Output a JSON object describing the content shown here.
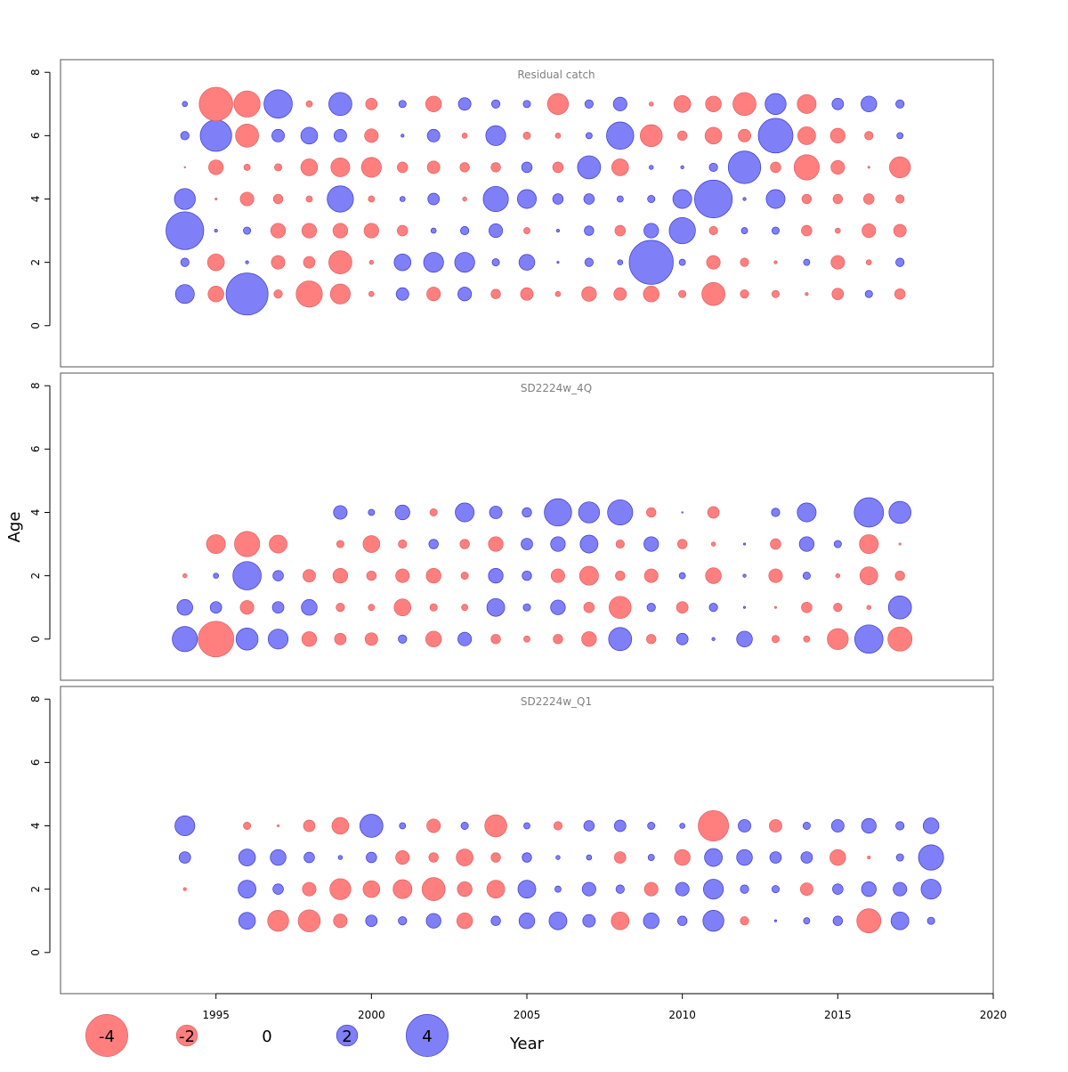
{
  "colors": {
    "positive": "#7f7ff7",
    "negative": "#ff7f7f",
    "positive_stroke": "#3a3acf",
    "negative_stroke": "#e06060",
    "panel_border": "#555555",
    "panel_title": "#808080"
  },
  "chart_data": {
    "type": "scatter",
    "subtype": "residual bubble plot",
    "xlabel": "Year",
    "ylabel": "Age",
    "xlim": [
      1990,
      2020
    ],
    "x_ticks": [
      1995,
      2000,
      2005,
      2010,
      2015,
      2020
    ],
    "ylim": [
      -1.3,
      8.4
    ],
    "y_ticks": [
      0,
      2,
      4,
      6,
      8
    ],
    "legend": {
      "position": "bottom",
      "values": [
        -4,
        -2,
        0,
        2,
        4
      ],
      "labels": [
        "-4",
        "-2",
        "0",
        "2",
        "4"
      ]
    },
    "panels": [
      {
        "title": "Residual catch",
        "years": [
          1994,
          1995,
          1996,
          1997,
          1998,
          1999,
          2000,
          2001,
          2002,
          2003,
          2004,
          2005,
          2006,
          2007,
          2008,
          2009,
          2010,
          2011,
          2012,
          2013,
          2014,
          2015,
          2016,
          2017
        ],
        "ages": [
          1,
          2,
          3,
          4,
          5,
          6,
          7
        ],
        "values": [
          [
            1.8,
            -1.5,
            4.0,
            -0.8,
            -2.5,
            -1.9,
            -0.5,
            1.2,
            -1.3,
            1.3,
            -0.9,
            -1.2,
            -0.5,
            -1.4,
            -1.2,
            -1.5,
            -0.7,
            -2.2,
            -0.8,
            -0.7,
            -0.3,
            -1.1,
            0.7,
            -1.0
          ],
          [
            0.8,
            -1.6,
            0.3,
            -1.3,
            -1.1,
            -2.2,
            -0.4,
            1.6,
            1.9,
            1.9,
            0.7,
            1.5,
            0.2,
            0.8,
            0.5,
            4.2,
            0.6,
            -1.3,
            -0.8,
            -0.3,
            0.6,
            -1.3,
            -0.5,
            0.8
          ],
          [
            3.6,
            0.3,
            0.7,
            -1.4,
            -1.4,
            -1.4,
            -1.4,
            -1.0,
            0.5,
            0.8,
            1.3,
            -0.6,
            0.3,
            0.9,
            -1.0,
            1.4,
            2.5,
            -0.8,
            0.6,
            0.7,
            -1.0,
            -0.5,
            -1.3,
            -1.2
          ],
          [
            2.0,
            -0.2,
            -1.3,
            -0.9,
            -0.6,
            2.5,
            -0.6,
            0.5,
            1.1,
            -0.4,
            2.4,
            1.8,
            1.0,
            1.0,
            0.6,
            0.7,
            1.8,
            3.6,
            0.3,
            1.8,
            -0.9,
            -0.9,
            -1.0,
            -0.8
          ],
          [
            -0.1,
            -1.4,
            -0.6,
            -0.7,
            -1.6,
            -1.8,
            -1.9,
            -1.0,
            -1.2,
            -0.9,
            -0.9,
            1.0,
            -1.0,
            2.2,
            -1.6,
            0.4,
            0.3,
            0.8,
            3.1,
            -1.0,
            -2.4,
            -1.3,
            -0.2,
            -2.0
          ],
          [
            0.8,
            3.0,
            -2.2,
            1.2,
            1.6,
            1.2,
            -1.3,
            0.3,
            1.2,
            -0.5,
            1.9,
            -0.7,
            -0.5,
            0.6,
            2.6,
            -2.1,
            -0.9,
            -1.6,
            -1.2,
            3.3,
            -1.7,
            -1.4,
            -0.8,
            0.6
          ],
          [
            0.5,
            -3.2,
            -2.5,
            2.7,
            -0.6,
            2.2,
            -1.1,
            0.7,
            -1.5,
            1.2,
            0.8,
            0.7,
            -2.0,
            0.8,
            1.3,
            -0.4,
            -1.6,
            -1.5,
            -2.2,
            2.0,
            -1.8,
            1.1,
            1.5,
            0.8
          ]
        ]
      },
      {
        "title": "SD2224w_4Q",
        "years": [
          1994,
          1995,
          1996,
          1997,
          1998,
          1999,
          2000,
          2001,
          2002,
          2003,
          2004,
          2005,
          2006,
          2007,
          2008,
          2009,
          2010,
          2011,
          2012,
          2013,
          2014,
          2015,
          2016,
          2017
        ],
        "ages": [
          0,
          1,
          2,
          3,
          4
        ],
        "values": [
          [
            2.4,
            -3.4,
            2.1,
            1.9,
            -1.4,
            -1.1,
            -1.2,
            0.8,
            -1.5,
            1.3,
            -0.9,
            -0.6,
            -0.9,
            -1.4,
            2.2,
            -0.9,
            1.1,
            0.3,
            1.5,
            -0.7,
            -0.6,
            -2.0,
            2.7,
            -2.3
          ],
          [
            1.5,
            1.1,
            -1.3,
            1.1,
            1.5,
            -0.8,
            -0.6,
            -1.6,
            -0.7,
            -0.6,
            1.7,
            0.7,
            1.4,
            -1.0,
            -2.1,
            0.8,
            -1.1,
            0.8,
            0.2,
            -0.2,
            -1.0,
            -0.8,
            -0.4,
            2.2
          ],
          [
            -0.4,
            0.5,
            2.7,
            1.0,
            -1.2,
            -1.4,
            -0.9,
            -1.3,
            -1.4,
            -0.7,
            1.4,
            0.9,
            -1.3,
            -1.8,
            -0.9,
            -1.3,
            0.6,
            -1.5,
            0.3,
            -1.3,
            0.7,
            -0.4,
            -1.7,
            -0.9
          ],
          [
            null,
            -1.8,
            -2.4,
            -1.7,
            null,
            -0.7,
            -1.6,
            -0.8,
            0.9,
            -0.9,
            -1.4,
            1.1,
            1.4,
            1.7,
            -0.8,
            1.4,
            -0.9,
            -0.4,
            0.2,
            -1.0,
            1.4,
            0.7,
            -1.8,
            -0.2
          ],
          [
            null,
            null,
            null,
            null,
            null,
            1.3,
            0.6,
            1.4,
            -0.7,
            1.8,
            1.2,
            0.9,
            2.6,
            2.0,
            2.4,
            -0.9,
            0.1,
            -1.1,
            null,
            0.8,
            1.8,
            null,
            2.8,
            2.1
          ]
        ]
      },
      {
        "title": "SD2224w_Q1",
        "years": [
          1994,
          1995,
          1996,
          1997,
          1998,
          1999,
          2000,
          2001,
          2002,
          2003,
          2004,
          2005,
          2006,
          2007,
          2008,
          2009,
          2010,
          2011,
          2012,
          2013,
          2014,
          2015,
          2016,
          2017,
          2018
        ],
        "ages": [
          1,
          2,
          3,
          4
        ],
        "values": [
          [
            null,
            null,
            1.6,
            -2.0,
            -2.1,
            -1.3,
            1.1,
            0.8,
            1.4,
            -1.5,
            0.9,
            1.5,
            1.7,
            1.2,
            -1.7,
            1.5,
            0.9,
            2.0,
            -0.8,
            0.2,
            0.6,
            0.9,
            -2.3,
            1.7,
            0.7
          ],
          [
            -0.3,
            null,
            1.7,
            1.0,
            -1.3,
            -2.0,
            -1.6,
            -1.8,
            -2.2,
            -1.4,
            -1.7,
            1.7,
            0.6,
            1.3,
            0.8,
            -1.3,
            1.3,
            1.9,
            0.8,
            0.7,
            -1.2,
            1.0,
            1.4,
            1.3,
            1.9
          ],
          [
            1.1,
            null,
            1.6,
            1.5,
            1.0,
            0.4,
            1.0,
            -1.3,
            -0.9,
            -1.6,
            -0.9,
            0.9,
            0.4,
            0.5,
            -1.1,
            0.6,
            -1.5,
            1.7,
            1.5,
            1.1,
            1.1,
            -1.5,
            -0.3,
            0.7,
            2.4
          ],
          [
            1.9,
            null,
            -0.7,
            -0.2,
            -1.1,
            -1.6,
            2.2,
            0.6,
            -1.3,
            0.7,
            -2.1,
            0.6,
            -0.8,
            1.0,
            1.1,
            0.7,
            0.5,
            -2.9,
            1.2,
            -1.2,
            0.7,
            1.2,
            1.4,
            0.8,
            1.5
          ]
        ]
      }
    ]
  }
}
